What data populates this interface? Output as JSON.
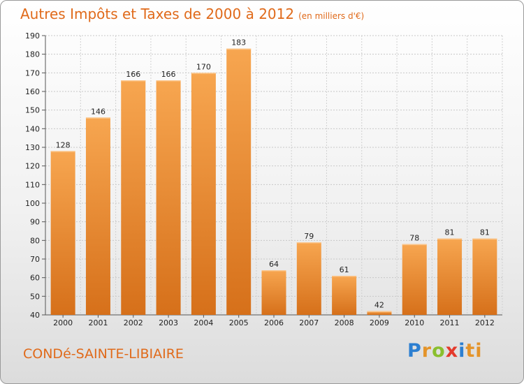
{
  "header": {
    "title": "Autres Impôts et Taxes de 2000 à 2012",
    "subtitle": "(en milliers d'€)"
  },
  "footer": {
    "city": "CONDé-SAINTE-LIBIAIRE",
    "brand": "Proxiti"
  },
  "colors": {
    "accent": "#e06a1a",
    "bar_light": "#f6a24e",
    "bar_dark": "#d9741c"
  },
  "chart_data": {
    "type": "bar",
    "title": "Autres Impôts et Taxes de 2000 à 2012",
    "subtitle": "(en milliers d'€)",
    "categories": [
      "2000",
      "2001",
      "2002",
      "2003",
      "2004",
      "2005",
      "2006",
      "2007",
      "2008",
      "2009",
      "2010",
      "2011",
      "2012"
    ],
    "values": [
      128,
      146,
      166,
      166,
      170,
      183,
      64,
      79,
      61,
      42,
      78,
      81,
      81
    ],
    "ylim": [
      40,
      190
    ],
    "yticks": [
      40,
      50,
      60,
      70,
      80,
      90,
      100,
      110,
      120,
      130,
      140,
      150,
      160,
      170,
      180,
      190
    ],
    "grid": true,
    "legend": "none"
  }
}
